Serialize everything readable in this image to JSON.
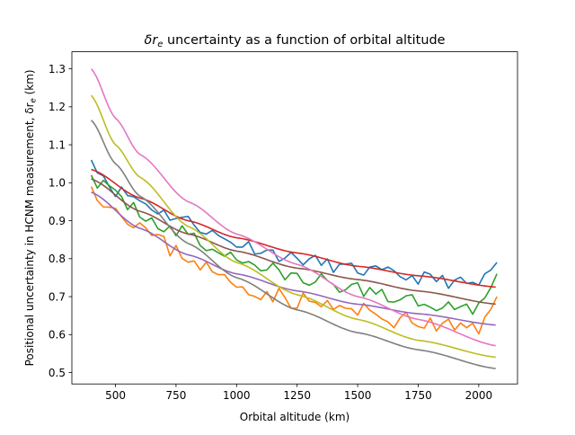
{
  "chart_data": {
    "type": "line",
    "title_main": "δr",
    "title_sub": "e",
    "title_rest": " uncertainty as a function of orbital altitude",
    "xlabel": "Orbital altitude (km)",
    "ylabel_main": "Positional uncertainty in HCNM measurement, δr",
    "ylabel_sub": "e",
    "ylabel_rest": " (km)",
    "xlim": [
      320,
      2160
    ],
    "ylim": [
      0.47,
      1.345
    ],
    "xticks": [
      500,
      750,
      1000,
      1250,
      1500,
      1750,
      2000
    ],
    "xtick_labels": [
      "500",
      "750",
      "1000",
      "1250",
      "1500",
      "1750",
      "2000"
    ],
    "yticks": [
      0.5,
      0.6,
      0.7,
      0.8,
      0.9,
      1.0,
      1.1,
      1.2,
      1.3
    ],
    "ytick_labels": [
      "0.5",
      "0.6",
      "0.7",
      "0.8",
      "0.9",
      "1.0",
      "1.1",
      "1.2",
      "1.3"
    ],
    "x": [
      400,
      1000,
      1500,
      2075
    ],
    "series": [
      {
        "color": "#1f77b4",
        "noise": 0.018,
        "seed": 11,
        "anchors": [
          [
            400,
            1.06
          ],
          [
            500,
            0.98
          ],
          [
            750,
            0.91
          ],
          [
            1000,
            0.84
          ],
          [
            1250,
            0.8
          ],
          [
            1500,
            0.77
          ],
          [
            1750,
            0.75
          ],
          [
            2000,
            0.73
          ],
          [
            2075,
            0.79
          ]
        ]
      },
      {
        "color": "#ff7f0e",
        "noise": 0.025,
        "seed": 23,
        "anchors": [
          [
            400,
            0.99
          ],
          [
            500,
            0.93
          ],
          [
            750,
            0.82
          ],
          [
            1000,
            0.73
          ],
          [
            1250,
            0.69
          ],
          [
            1500,
            0.66
          ],
          [
            1750,
            0.63
          ],
          [
            2000,
            0.61
          ],
          [
            2075,
            0.7
          ]
        ]
      },
      {
        "color": "#2ca02c",
        "noise": 0.022,
        "seed": 37,
        "anchors": [
          [
            400,
            1.02
          ],
          [
            500,
            0.96
          ],
          [
            750,
            0.87
          ],
          [
            1000,
            0.8
          ],
          [
            1250,
            0.75
          ],
          [
            1500,
            0.72
          ],
          [
            1750,
            0.69
          ],
          [
            2000,
            0.67
          ],
          [
            2075,
            0.76
          ]
        ]
      },
      {
        "color": "#d62728",
        "noise": 0,
        "seed": 0,
        "anchors": [
          [
            400,
            1.035
          ],
          [
            600,
            0.96
          ],
          [
            800,
            0.9
          ],
          [
            1000,
            0.855
          ],
          [
            1250,
            0.815
          ],
          [
            1500,
            0.78
          ],
          [
            1750,
            0.755
          ],
          [
            2075,
            0.725
          ]
        ]
      },
      {
        "color": "#9467bd",
        "noise": 0,
        "seed": 0,
        "anchors": [
          [
            400,
            0.975
          ],
          [
            600,
            0.88
          ],
          [
            800,
            0.81
          ],
          [
            1000,
            0.76
          ],
          [
            1250,
            0.715
          ],
          [
            1500,
            0.68
          ],
          [
            1750,
            0.655
          ],
          [
            2075,
            0.625
          ]
        ]
      },
      {
        "color": "#8c564b",
        "noise": 0,
        "seed": 0,
        "anchors": [
          [
            400,
            1.01
          ],
          [
            600,
            0.925
          ],
          [
            800,
            0.865
          ],
          [
            1000,
            0.82
          ],
          [
            1250,
            0.775
          ],
          [
            1500,
            0.745
          ],
          [
            1750,
            0.715
          ],
          [
            2075,
            0.68
          ]
        ]
      },
      {
        "color": "#e377c2",
        "noise": 0,
        "seed": 0,
        "anchors": [
          [
            400,
            1.3
          ],
          [
            500,
            1.17
          ],
          [
            600,
            1.075
          ],
          [
            800,
            0.95
          ],
          [
            1000,
            0.865
          ],
          [
            1250,
            0.785
          ],
          [
            1500,
            0.7
          ],
          [
            1750,
            0.64
          ],
          [
            2075,
            0.57
          ]
        ]
      },
      {
        "color": "#7f7f7f",
        "noise": 0,
        "seed": 0,
        "anchors": [
          [
            400,
            1.165
          ],
          [
            500,
            1.05
          ],
          [
            600,
            0.965
          ],
          [
            800,
            0.84
          ],
          [
            1000,
            0.75
          ],
          [
            1250,
            0.665
          ],
          [
            1500,
            0.605
          ],
          [
            1750,
            0.56
          ],
          [
            2075,
            0.51
          ]
        ]
      },
      {
        "color": "#bcbd22",
        "noise": 0,
        "seed": 0,
        "anchors": [
          [
            400,
            1.23
          ],
          [
            500,
            1.1
          ],
          [
            600,
            1.015
          ],
          [
            800,
            0.885
          ],
          [
            1000,
            0.79
          ],
          [
            1250,
            0.705
          ],
          [
            1500,
            0.64
          ],
          [
            1750,
            0.585
          ],
          [
            2075,
            0.54
          ]
        ]
      }
    ],
    "grid": false,
    "legend": "none"
  }
}
